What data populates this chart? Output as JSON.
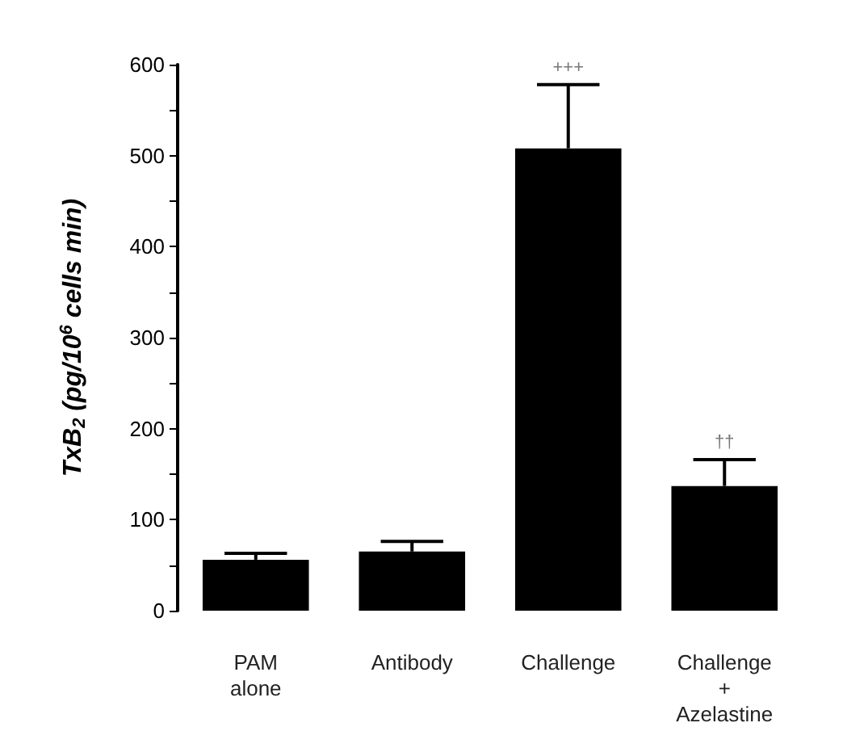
{
  "chart_data": {
    "type": "bar",
    "ylabel": "TxB$_{2}$ (pg/10$^{6}$ cells min)",
    "categories": [
      "PAM\nalone",
      "Antibody",
      "Challenge",
      "Challenge\n+\nAzelastine"
    ],
    "series": [
      {
        "color": "#000000",
        "values": [
          56,
          65,
          508,
          137
        ],
        "errors": [
          [
            56,
            63
          ],
          [
            65,
            76
          ],
          [
            508,
            578
          ],
          [
            137,
            166
          ]
        ]
      }
    ],
    "ylim": [
      0,
      600
    ],
    "yticks": [
      0,
      {
        "value": 50,
        "label": null
      },
      100,
      {
        "value": 150,
        "label": null
      },
      200,
      {
        "value": 250,
        "label": null
      },
      300,
      {
        "value": 350,
        "label": null
      },
      400,
      {
        "value": 450,
        "label": null
      },
      500,
      {
        "value": 550,
        "label": null
      },
      600
    ],
    "annotations": [
      {
        "text": "+++",
        "x": "Challenge",
        "y": 578
      },
      {
        "text": "††",
        "x": "Challenge\n+\nAzelastine",
        "y": 166
      }
    ],
    "grid": false
  }
}
